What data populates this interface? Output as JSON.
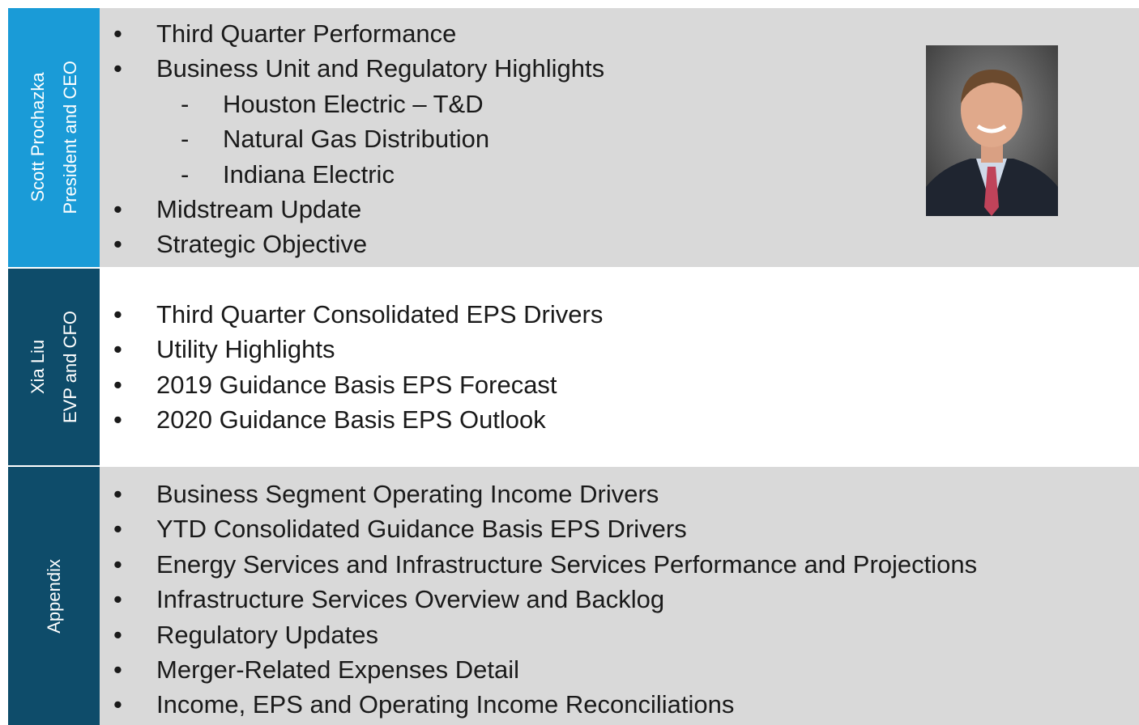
{
  "sections": [
    {
      "speaker_name": "Scott Prochazka",
      "speaker_title": "President and CEO",
      "items": [
        {
          "text": "Third Quarter Performance"
        },
        {
          "text": "Business Unit and Regulatory Highlights",
          "subitems": [
            "Houston Electric – T&D",
            "Natural Gas Distribution",
            "Indiana Electric"
          ]
        },
        {
          "text": "Midstream Update"
        },
        {
          "text": "Strategic Objective"
        }
      ]
    },
    {
      "speaker_name": "Xia Liu",
      "speaker_title": "EVP and CFO",
      "items": [
        {
          "text": "Third Quarter Consolidated EPS Drivers"
        },
        {
          "text": "Utility Highlights"
        },
        {
          "text": "2019 Guidance Basis EPS Forecast"
        },
        {
          "text": "2020 Guidance Basis EPS Outlook"
        }
      ]
    },
    {
      "speaker_name": "Appendix",
      "items": [
        {
          "text": "Business Segment Operating Income Drivers"
        },
        {
          "text": "YTD Consolidated Guidance Basis EPS Drivers"
        },
        {
          "text": "Energy Services and Infrastructure Services Performance and Projections"
        },
        {
          "text": "Infrastructure Services Overview and Backlog"
        },
        {
          "text": "Regulatory Updates"
        },
        {
          "text": "Merger-Related Expenses Detail"
        },
        {
          "text": "Income, EPS and Operating Income Reconciliations"
        }
      ]
    }
  ]
}
